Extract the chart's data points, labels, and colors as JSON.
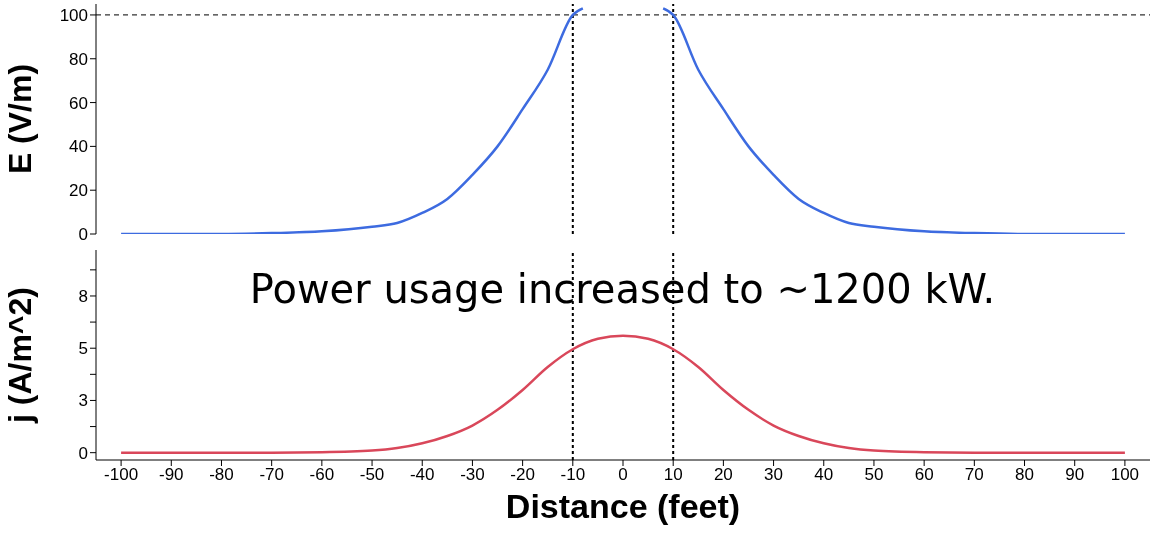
{
  "chart_data": [
    {
      "type": "line",
      "ylabel": "E (V/m)",
      "xlim": [
        -105,
        105
      ],
      "ylim": [
        0,
        105
      ],
      "yticks": [
        0,
        20,
        40,
        60,
        80,
        100
      ],
      "tick_labels": "y",
      "grid": false,
      "legend": false,
      "marker": "none",
      "line_style": "solid",
      "series": [
        {
          "color": "#3d6be0",
          "x": [
            -100,
            -90,
            -80,
            -70,
            -60,
            -50,
            -45,
            -40,
            -35,
            -30,
            -25,
            -20,
            -15,
            -10,
            -8,
            0,
            8,
            10,
            15,
            20,
            25,
            30,
            35,
            40,
            45,
            50,
            60,
            70,
            80,
            90,
            100
          ],
          "values": [
            0,
            0,
            0,
            0.4,
            1.2,
            3.3,
            5,
            9.6,
            16,
            27,
            40,
            57,
            75,
            100,
            103,
            null,
            103,
            100,
            75,
            57,
            40,
            27,
            16,
            9.6,
            5,
            3.3,
            1.2,
            0.4,
            0,
            0,
            0
          ]
        }
      ],
      "ref_lines": [
        {
          "axis": "y",
          "value": 100,
          "line_style": "dashed",
          "color": "#333333"
        },
        {
          "axis": "x",
          "value": -10,
          "line_style": "dotted",
          "color": "#000000"
        },
        {
          "axis": "x",
          "value": 10,
          "line_style": "dotted",
          "color": "#000000"
        }
      ]
    },
    {
      "type": "line",
      "ylabel": "j (A/m^2)",
      "xlabel": "Distance (feet)",
      "xlim": [
        -105,
        105
      ],
      "xticks": [
        -100,
        -90,
        -80,
        -70,
        -60,
        -50,
        -40,
        -30,
        -20,
        -10,
        0,
        10,
        20,
        30,
        40,
        50,
        60,
        70,
        80,
        90,
        100
      ],
      "ylim": [
        -0.35,
        9.7
      ],
      "yticks": [
        0,
        {
          "value": 1.25,
          "label": null
        },
        {
          "value": 2.5,
          "label": "3"
        },
        {
          "value": 3.75,
          "label": null
        },
        5,
        {
          "value": 6.25,
          "label": null
        },
        {
          "value": 7.5,
          "label": "8"
        },
        {
          "value": 8.75,
          "label": null
        }
      ],
      "grid": false,
      "legend": false,
      "marker": "none",
      "line_style": "solid",
      "series": [
        {
          "color": "#d9475a",
          "x": [
            -100,
            -90,
            -80,
            -70,
            -60,
            -50,
            -45,
            -40,
            -35,
            -30,
            -25,
            -20,
            -15,
            -10,
            -5,
            0,
            5,
            10,
            15,
            20,
            25,
            30,
            35,
            40,
            45,
            50,
            60,
            70,
            80,
            90,
            100
          ],
          "values": [
            0,
            0,
            0,
            0,
            0.02,
            0.1,
            0.22,
            0.45,
            0.8,
            1.3,
            2.05,
            3,
            4.1,
            4.95,
            5.45,
            5.6,
            5.45,
            4.95,
            4.1,
            3,
            2.05,
            1.3,
            0.8,
            0.45,
            0.22,
            0.1,
            0.02,
            0,
            0,
            0,
            0
          ]
        }
      ],
      "ref_lines": [
        {
          "axis": "x",
          "value": -10,
          "line_style": "dotted",
          "color": "#000000"
        },
        {
          "axis": "x",
          "value": 10,
          "line_style": "dotted",
          "color": "#000000"
        }
      ],
      "annotations": [
        "Power usage increased to ~1200 kW."
      ]
    }
  ]
}
